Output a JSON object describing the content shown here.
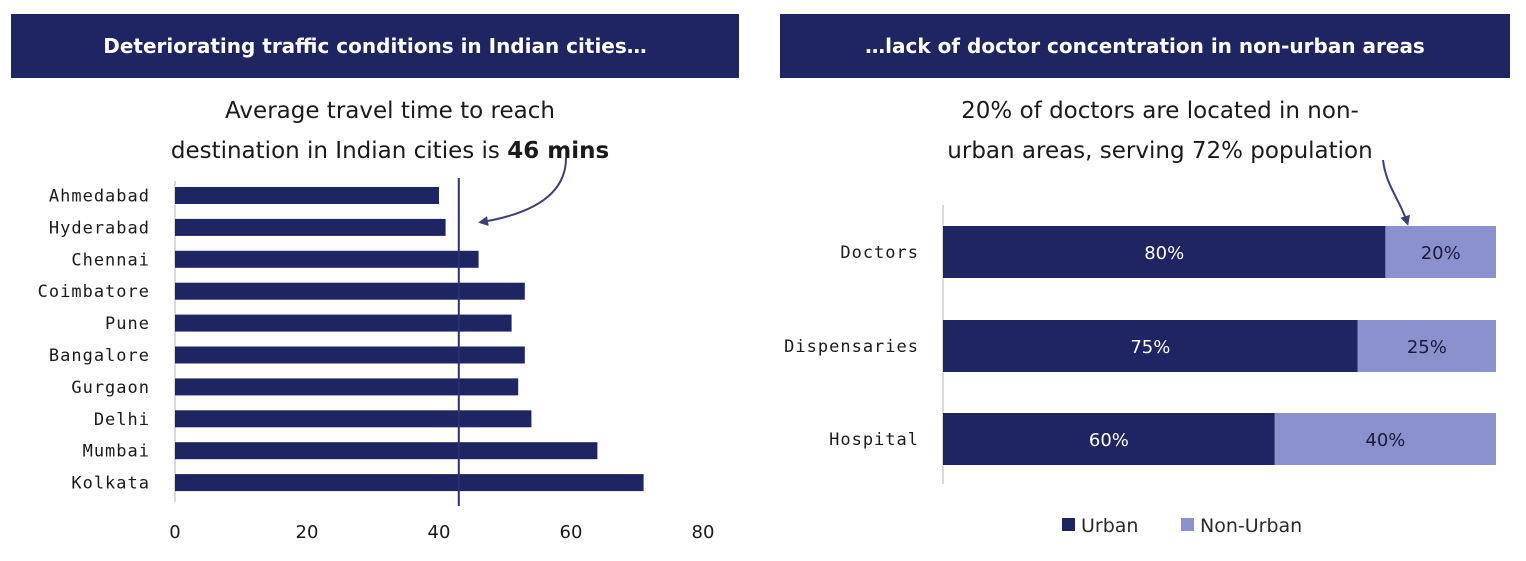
{
  "left_panel": {
    "header": "Deteriorating traffic conditions in Indian cities…",
    "subtitle_line1": "Average travel time to reach",
    "subtitle_line2_prefix": "destination in Indian cities is ",
    "subtitle_line2_bold": "46 mins"
  },
  "right_panel": {
    "header": "…lack of doctor concentration in non-urban areas",
    "subtitle_line1": "20% of doctors are located in non-",
    "subtitle_line2": "urban areas, serving 72% population"
  },
  "colors": {
    "header_bg": "#1f2463",
    "urban": "#1f2463",
    "non_urban": "#8b91cc",
    "reference_line": "#2d3270"
  },
  "chart_data": [
    {
      "type": "bar",
      "orientation": "horizontal",
      "categories": [
        "Ahmedabad",
        "Hyderabad",
        "Chennai",
        "Coimbatore",
        "Pune",
        "Bangalore",
        "Gurgaon",
        "Delhi",
        "Mumbai",
        "Kolkata"
      ],
      "values": [
        40,
        41,
        46,
        53,
        51,
        53,
        52,
        54,
        64,
        71
      ],
      "reference_line": 43,
      "xlim": [
        0,
        80
      ],
      "xticks": [
        "0",
        "20",
        "40",
        "60",
        "80"
      ],
      "xtick_values": [
        0,
        20,
        40,
        60,
        80
      ]
    },
    {
      "type": "bar",
      "orientation": "horizontal",
      "stacked": true,
      "categories": [
        "Doctors",
        "Dispensaries",
        "Hospital"
      ],
      "series": [
        {
          "name": "Urban",
          "values": [
            80,
            75,
            60
          ],
          "labels": [
            "80%",
            "75%",
            "60%"
          ]
        },
        {
          "name": "Non-Urban",
          "values": [
            20,
            25,
            40
          ],
          "labels": [
            "20%",
            "25%",
            "40%"
          ]
        }
      ],
      "xlim": [
        0,
        100
      ],
      "legend": "bottom"
    }
  ]
}
